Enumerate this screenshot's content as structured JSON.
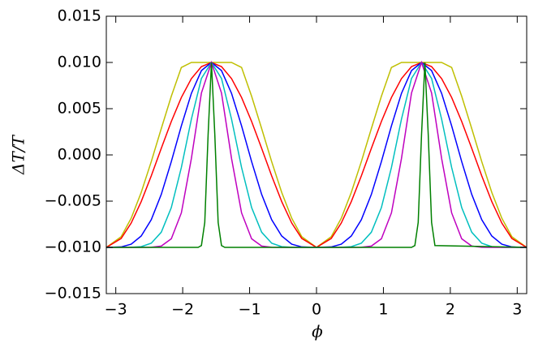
{
  "chart_data": {
    "type": "line",
    "xlabel": "ϕ",
    "ylabel": "ΔT/T",
    "xlim": [
      -3.14159,
      3.14159
    ],
    "ylim": [
      -0.015,
      0.015
    ],
    "xticks": [
      {
        "value": -3,
        "label": "−3"
      },
      {
        "value": -2,
        "label": "−2"
      },
      {
        "value": -1,
        "label": "−1"
      },
      0,
      1,
      2,
      3
    ],
    "yticks": [
      {
        "value": -0.015,
        "label": "−0.015"
      },
      {
        "value": -0.01,
        "label": "−0.010"
      },
      {
        "value": -0.005,
        "label": "−0.005"
      },
      {
        "value": 0,
        "label": "0.000"
      },
      {
        "value": 0.005,
        "label": "0.005"
      },
      {
        "value": 0.01,
        "label": "0.010"
      },
      {
        "value": 0.015,
        "label": "0.015"
      }
    ],
    "grid": false,
    "x": [
      -3.14,
      -2.92,
      -2.77,
      -2.62,
      -2.47,
      -2.32,
      -2.17,
      -2.02,
      -1.87,
      -1.72,
      -1.57,
      -1.42,
      -1.27,
      -1.12,
      -0.97,
      -0.82,
      -0.67,
      -0.52,
      -0.37,
      -0.22,
      0,
      0.22,
      0.37,
      0.52,
      0.67,
      0.82,
      0.97,
      1.12,
      1.27,
      1.42,
      1.57,
      1.72,
      1.87,
      2.02,
      2.17,
      2.32,
      2.47,
      2.62,
      2.77,
      2.92,
      3.14
    ],
    "series": [
      {
        "color": "#bfbf00",
        "values": [
          -0.01,
          -0.00885,
          -0.00685,
          -0.00406,
          -0.00073,
          0.00285,
          0.00635,
          0.00946,
          0.01,
          0.01,
          0.01,
          0.01,
          0.01,
          0.00946,
          0.00635,
          0.00285,
          -0.00073,
          -0.00406,
          -0.00685,
          -0.00885,
          -0.01,
          -0.00885,
          -0.00685,
          -0.00406,
          -0.00073,
          0.00285,
          0.00635,
          0.00946,
          0.01,
          0.01,
          0.01,
          0.01,
          0.01,
          0.00946,
          0.00635,
          0.00285,
          -0.00073,
          -0.00406,
          -0.00685,
          -0.00885,
          -0.01
        ]
      },
      {
        "color": "#ff0000",
        "values": [
          -0.01,
          -0.00904,
          -0.00737,
          -0.00505,
          -0.00227,
          0.00071,
          0.00362,
          0.00621,
          0.00825,
          0.00955,
          0.01,
          0.00955,
          0.00825,
          0.00621,
          0.00362,
          0.00071,
          -0.00227,
          -0.00505,
          -0.00737,
          -0.00904,
          -0.01,
          -0.00904,
          -0.00737,
          -0.00505,
          -0.00227,
          0.00071,
          0.00362,
          0.00621,
          0.00825,
          0.00955,
          0.01,
          0.00955,
          0.00825,
          0.00621,
          0.00362,
          0.00071,
          -0.00227,
          -0.00505,
          -0.00737,
          -0.00904,
          -0.01
        ]
      },
      {
        "color": "#0000ff",
        "values": [
          -0.01,
          -0.00995,
          -0.00966,
          -0.00877,
          -0.00701,
          -0.00427,
          -0.00072,
          0.00314,
          0.00666,
          0.00912,
          0.01,
          0.00912,
          0.00666,
          0.00314,
          -0.00072,
          -0.00427,
          -0.00701,
          -0.00877,
          -0.00966,
          -0.00995,
          -0.01,
          -0.00995,
          -0.00966,
          -0.00877,
          -0.00701,
          -0.00427,
          -0.00072,
          0.00314,
          0.00666,
          0.00912,
          0.01,
          0.00912,
          0.00666,
          0.00314,
          -0.00072,
          -0.00427,
          -0.00701,
          -0.00877,
          -0.00966,
          -0.00995,
          -0.01
        ]
      },
      {
        "color": "#00bfbf",
        "values": [
          -0.01,
          -0.01,
          -0.00999,
          -0.00992,
          -0.00955,
          -0.00836,
          -0.00569,
          -0.00136,
          0.00387,
          0.00827,
          0.01,
          0.00827,
          0.00387,
          -0.00136,
          -0.00569,
          -0.00836,
          -0.00955,
          -0.00992,
          -0.00999,
          -0.01,
          -0.01,
          -0.01,
          -0.00999,
          -0.00992,
          -0.00955,
          -0.00836,
          -0.00569,
          -0.00136,
          0.00387,
          0.00827,
          0.01,
          0.00827,
          0.00387,
          -0.00136,
          -0.00569,
          -0.00836,
          -0.00955,
          -0.00992,
          -0.00999,
          -0.01,
          -0.01
        ]
      },
      {
        "color": "#bf00bf",
        "values": [
          -0.01,
          -0.01,
          -0.01,
          -0.01,
          -0.00999,
          -0.00986,
          -0.00907,
          -0.00627,
          -0.00038,
          0.0067,
          0.01,
          0.0067,
          -0.00038,
          -0.00627,
          -0.00907,
          -0.00986,
          -0.00999,
          -0.01,
          -0.01,
          -0.01,
          -0.01,
          -0.01,
          -0.01,
          -0.01,
          -0.00999,
          -0.00986,
          -0.00907,
          -0.00627,
          -0.00038,
          0.0067,
          0.01,
          0.0067,
          -0.00038,
          -0.00627,
          -0.00907,
          -0.00986,
          -0.00999,
          -0.01,
          -0.01,
          -0.01,
          -0.01
        ]
      },
      {
        "color": "#008000",
        "x": [
          -3.14,
          -1.77,
          -1.72,
          -1.67,
          -1.62,
          -1.57,
          -1.52,
          -1.47,
          -1.42,
          -1.37,
          1.37,
          1.42,
          1.47,
          1.52,
          1.57,
          1.62,
          1.67,
          1.72,
          1.77,
          3.14
        ],
        "values": [
          -0.01,
          -0.01,
          -0.0098,
          -0.0073,
          0.0022,
          0.01,
          0.0022,
          -0.0073,
          -0.0098,
          -0.01,
          -0.01,
          -0.01,
          -0.0098,
          -0.0073,
          0.0022,
          0.01,
          0.0022,
          -0.0073,
          -0.0098,
          -0.01
        ]
      }
    ]
  }
}
